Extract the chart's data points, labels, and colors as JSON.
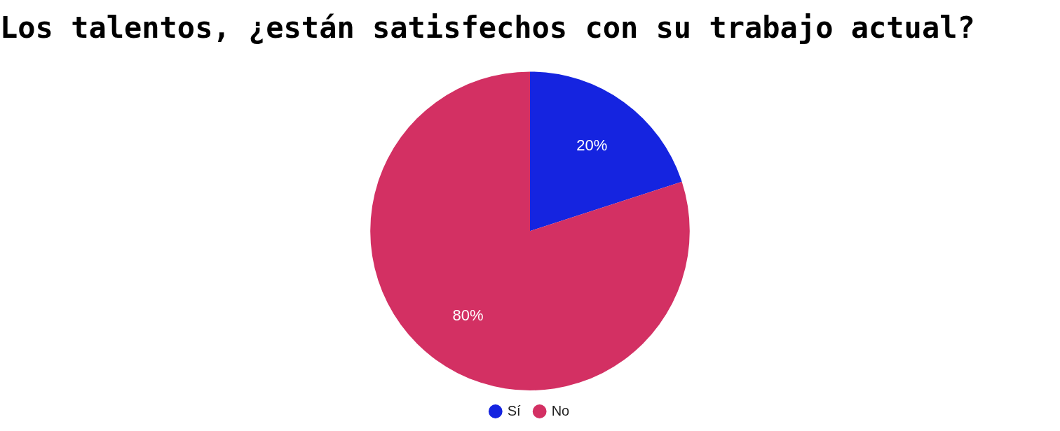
{
  "chart_data": {
    "type": "pie",
    "title": "Los talentos, ¿están satisfechos con su trabajo actual?",
    "categories": [
      "Sí",
      "No"
    ],
    "values": [
      20,
      80
    ],
    "colors": [
      "#1524e0",
      "#d33063"
    ],
    "value_labels": [
      "20%",
      "80%"
    ],
    "legend": "bottom"
  }
}
